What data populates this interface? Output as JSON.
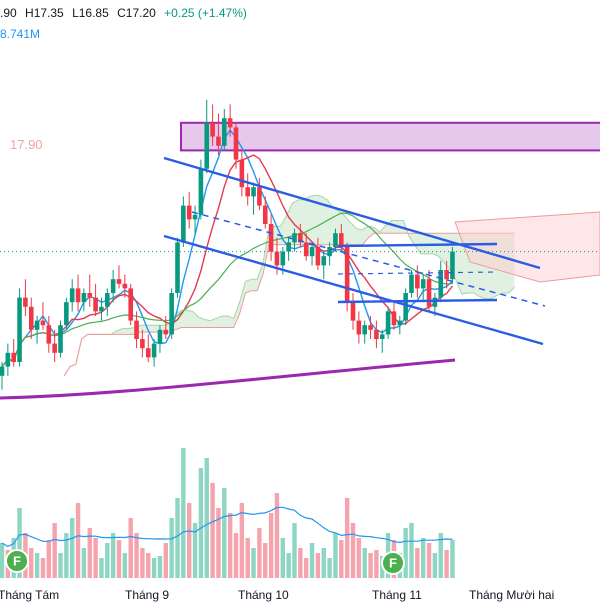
{
  "header": {
    "open_fragment": ".90",
    "high": "H17.35",
    "low": "L16.85",
    "close": "C17.20",
    "change": "+0.25 (+1.47%)",
    "volume_fragment": "8.741M"
  },
  "level_label": "17.90",
  "colors": {
    "up": "#089981",
    "down": "#f23645",
    "vol_up": "#8dd6c4",
    "vol_down": "#f5a3ac",
    "ma_blue": "#2196f3",
    "ma_red": "#e53950",
    "ma_green": "#4caf50",
    "ma_purple": "#9c27b0",
    "trend_line": "#2b5ce6",
    "zone_fill": "#e1bee7",
    "zone_border": "#9c27b0",
    "cloud_green": "#c8e6c9",
    "cloud_red": "#ffcdd2"
  },
  "chart_data": {
    "type": "candlestick",
    "x_tick_labels": [
      "Tháng Tám",
      "Tháng 9",
      "Tháng 10",
      "Tháng 11",
      "Tháng Mười hai"
    ],
    "ylim": [
      14.0,
      19.0
    ],
    "zone": [
      17.8,
      18.1
    ],
    "candles": [
      [
        15.35,
        15.5,
        15.2,
        15.45
      ],
      [
        15.45,
        15.7,
        15.35,
        15.6
      ],
      [
        15.6,
        15.75,
        15.45,
        15.5
      ],
      [
        15.5,
        16.3,
        15.45,
        16.2
      ],
      [
        16.2,
        16.4,
        16.0,
        16.1
      ],
      [
        16.1,
        16.2,
        15.75,
        15.85
      ],
      [
        15.85,
        16.0,
        15.7,
        15.95
      ],
      [
        15.95,
        16.15,
        15.85,
        15.9
      ],
      [
        15.9,
        16.0,
        15.6,
        15.7
      ],
      [
        15.7,
        15.85,
        15.5,
        15.6
      ],
      [
        15.6,
        15.95,
        15.55,
        15.9
      ],
      [
        15.9,
        16.2,
        15.85,
        16.15
      ],
      [
        16.15,
        16.4,
        16.05,
        16.3
      ],
      [
        16.3,
        16.45,
        16.05,
        16.15
      ],
      [
        16.15,
        16.3,
        16.05,
        16.25
      ],
      [
        16.25,
        16.45,
        16.1,
        16.2
      ],
      [
        16.2,
        16.35,
        16.0,
        16.05
      ],
      [
        16.05,
        16.2,
        15.95,
        16.1
      ],
      [
        16.1,
        16.3,
        16.0,
        16.25
      ],
      [
        16.25,
        16.5,
        16.15,
        16.4
      ],
      [
        16.4,
        16.55,
        16.3,
        16.35
      ],
      [
        16.35,
        16.45,
        16.2,
        16.3
      ],
      [
        16.3,
        16.35,
        15.9,
        15.95
      ],
      [
        15.95,
        16.05,
        15.65,
        15.75
      ],
      [
        15.75,
        15.85,
        15.55,
        15.65
      ],
      [
        15.65,
        15.8,
        15.5,
        15.55
      ],
      [
        15.55,
        15.75,
        15.45,
        15.7
      ],
      [
        15.7,
        15.9,
        15.6,
        15.85
      ],
      [
        15.85,
        16.0,
        15.75,
        15.8
      ],
      [
        15.8,
        16.3,
        15.75,
        16.25
      ],
      [
        16.25,
        16.85,
        16.2,
        16.8
      ],
      [
        16.8,
        17.3,
        16.75,
        17.2
      ],
      [
        17.2,
        17.35,
        16.95,
        17.05
      ],
      [
        17.05,
        17.2,
        16.9,
        17.1
      ],
      [
        17.1,
        17.7,
        17.05,
        17.6
      ],
      [
        17.6,
        18.35,
        17.55,
        18.1
      ],
      [
        18.1,
        18.3,
        17.85,
        17.95
      ],
      [
        17.95,
        18.2,
        17.75,
        17.85
      ],
      [
        17.85,
        18.25,
        17.8,
        18.15
      ],
      [
        18.15,
        18.3,
        17.95,
        18.05
      ],
      [
        18.05,
        18.1,
        17.6,
        17.7
      ],
      [
        17.7,
        17.8,
        17.3,
        17.4
      ],
      [
        17.4,
        17.55,
        17.2,
        17.3
      ],
      [
        17.3,
        17.45,
        17.1,
        17.4
      ],
      [
        17.4,
        17.5,
        17.15,
        17.2
      ],
      [
        17.2,
        17.3,
        16.95,
        17.0
      ],
      [
        17.0,
        17.1,
        16.6,
        16.7
      ],
      [
        16.7,
        16.85,
        16.45,
        16.55
      ],
      [
        16.55,
        16.75,
        16.45,
        16.7
      ],
      [
        16.7,
        16.85,
        16.6,
        16.8
      ],
      [
        16.8,
        16.95,
        16.7,
        16.9
      ],
      [
        16.9,
        17.0,
        16.75,
        16.8
      ],
      [
        16.8,
        16.9,
        16.6,
        16.65
      ],
      [
        16.65,
        16.8,
        16.55,
        16.75
      ],
      [
        16.75,
        16.85,
        16.5,
        16.55
      ],
      [
        16.55,
        16.7,
        16.4,
        16.65
      ],
      [
        16.65,
        16.8,
        16.55,
        16.75
      ],
      [
        16.75,
        16.95,
        16.7,
        16.9
      ],
      [
        16.9,
        17.0,
        16.7,
        16.75
      ],
      [
        16.75,
        16.8,
        16.05,
        16.15
      ],
      [
        16.15,
        16.25,
        15.85,
        15.95
      ],
      [
        15.95,
        16.05,
        15.7,
        15.8
      ],
      [
        15.8,
        15.95,
        15.7,
        15.9
      ],
      [
        15.9,
        16.0,
        15.75,
        15.85
      ],
      [
        15.85,
        15.95,
        15.65,
        15.75
      ],
      [
        15.75,
        15.85,
        15.6,
        15.8
      ],
      [
        15.8,
        16.1,
        15.75,
        16.05
      ],
      [
        16.05,
        16.15,
        15.85,
        15.9
      ],
      [
        15.9,
        16.0,
        15.8,
        15.95
      ],
      [
        15.95,
        16.3,
        15.9,
        16.25
      ],
      [
        16.25,
        16.5,
        16.2,
        16.45
      ],
      [
        16.45,
        16.55,
        16.2,
        16.3
      ],
      [
        16.3,
        16.45,
        16.15,
        16.4
      ],
      [
        16.4,
        16.5,
        16.05,
        16.1
      ],
      [
        16.1,
        16.25,
        16.0,
        16.2
      ],
      [
        16.2,
        16.6,
        16.15,
        16.5
      ],
      [
        16.5,
        16.6,
        16.3,
        16.4
      ],
      [
        16.4,
        16.75,
        16.35,
        16.7
      ]
    ],
    "volume": [
      [
        35,
        1
      ],
      [
        28,
        0
      ],
      [
        40,
        1
      ],
      [
        70,
        1
      ],
      [
        45,
        0
      ],
      [
        30,
        0
      ],
      [
        25,
        1
      ],
      [
        20,
        0
      ],
      [
        38,
        0
      ],
      [
        55,
        0
      ],
      [
        25,
        1
      ],
      [
        45,
        1
      ],
      [
        60,
        1
      ],
      [
        75,
        0
      ],
      [
        30,
        1
      ],
      [
        50,
        0
      ],
      [
        40,
        0
      ],
      [
        20,
        1
      ],
      [
        35,
        1
      ],
      [
        45,
        1
      ],
      [
        38,
        0
      ],
      [
        25,
        1
      ],
      [
        60,
        0
      ],
      [
        45,
        0
      ],
      [
        30,
        0
      ],
      [
        25,
        0
      ],
      [
        20,
        1
      ],
      [
        22,
        1
      ],
      [
        35,
        0
      ],
      [
        60,
        1
      ],
      [
        80,
        1
      ],
      [
        130,
        1
      ],
      [
        75,
        0
      ],
      [
        55,
        1
      ],
      [
        110,
        1
      ],
      [
        120,
        1
      ],
      [
        95,
        0
      ],
      [
        70,
        0
      ],
      [
        90,
        1
      ],
      [
        65,
        0
      ],
      [
        45,
        0
      ],
      [
        75,
        0
      ],
      [
        40,
        0
      ],
      [
        30,
        1
      ],
      [
        50,
        0
      ],
      [
        35,
        0
      ],
      [
        65,
        0
      ],
      [
        85,
        0
      ],
      [
        40,
        1
      ],
      [
        25,
        1
      ],
      [
        55,
        1
      ],
      [
        30,
        0
      ],
      [
        20,
        0
      ],
      [
        35,
        1
      ],
      [
        25,
        0
      ],
      [
        30,
        1
      ],
      [
        20,
        1
      ],
      [
        45,
        1
      ],
      [
        38,
        0
      ],
      [
        80,
        0
      ],
      [
        55,
        0
      ],
      [
        40,
        0
      ],
      [
        30,
        1
      ],
      [
        25,
        0
      ],
      [
        28,
        0
      ],
      [
        22,
        1
      ],
      [
        45,
        1
      ],
      [
        38,
        0
      ],
      [
        25,
        1
      ],
      [
        50,
        1
      ],
      [
        55,
        1
      ],
      [
        30,
        0
      ],
      [
        40,
        1
      ],
      [
        35,
        0
      ],
      [
        25,
        1
      ],
      [
        45,
        1
      ],
      [
        28,
        0
      ],
      [
        38,
        1
      ]
    ],
    "volume_max": 130
  }
}
